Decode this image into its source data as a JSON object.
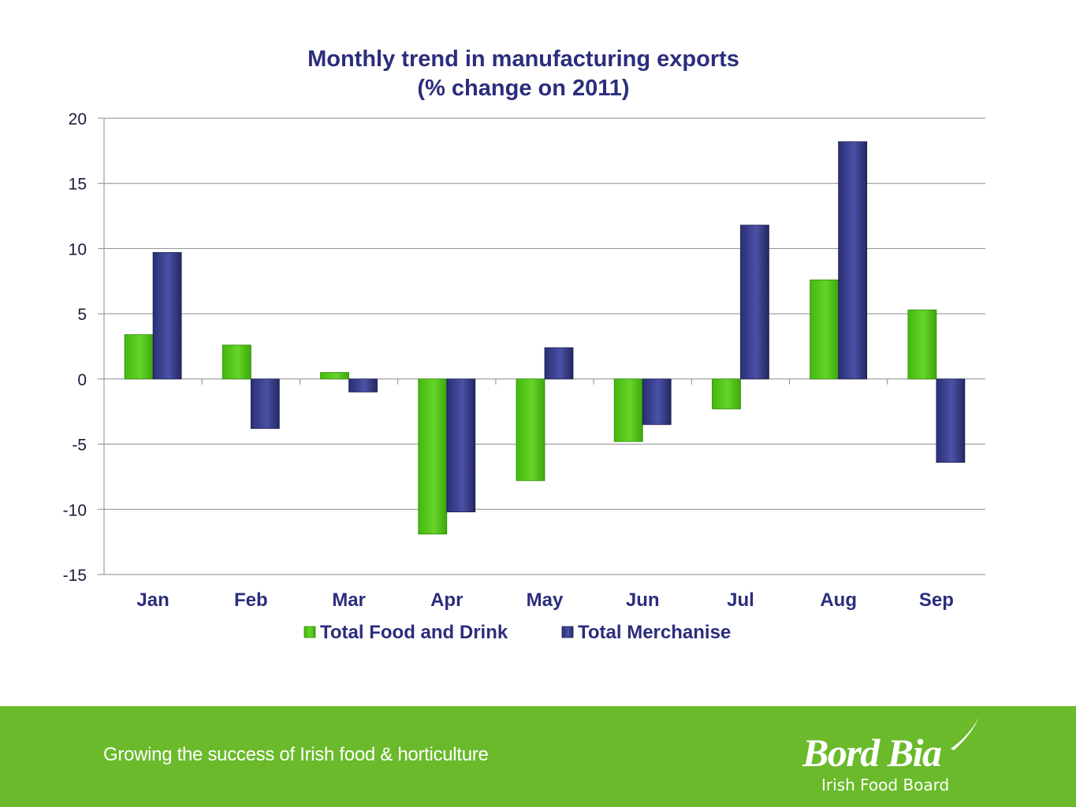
{
  "chart_data": {
    "type": "bar",
    "title": "Monthly trend in manufacturing exports",
    "subtitle": "(% change on 2011)",
    "categories": [
      "Jan",
      "Feb",
      "Mar",
      "Apr",
      "May",
      "Jun",
      "Jul",
      "Aug",
      "Sep"
    ],
    "series": [
      {
        "name": "Total Food and Drink",
        "color": "#56c21f",
        "values": [
          3.4,
          2.6,
          0.5,
          -11.9,
          -7.8,
          -4.8,
          -2.3,
          7.6,
          5.3
        ]
      },
      {
        "name": "Total Merchanise",
        "color": "#353a86",
        "values": [
          9.7,
          -3.8,
          -1.0,
          -10.2,
          2.4,
          -3.5,
          11.8,
          18.2,
          -6.4
        ]
      }
    ],
    "ylim": [
      -15,
      20
    ],
    "yticks": [
      "20",
      "15",
      "10",
      "5",
      "0",
      "-5",
      "-10",
      "-15"
    ],
    "ytick_values": [
      20,
      15,
      10,
      5,
      0,
      -5,
      -10,
      -15
    ],
    "grid": true,
    "legend": "bottom"
  },
  "footer": {
    "tagline": "Growing the success of Irish food & horticulture",
    "logo_name": "Bord Bia",
    "logo_subtitle": "Irish Food Board",
    "background_color": "#6aba2b"
  }
}
